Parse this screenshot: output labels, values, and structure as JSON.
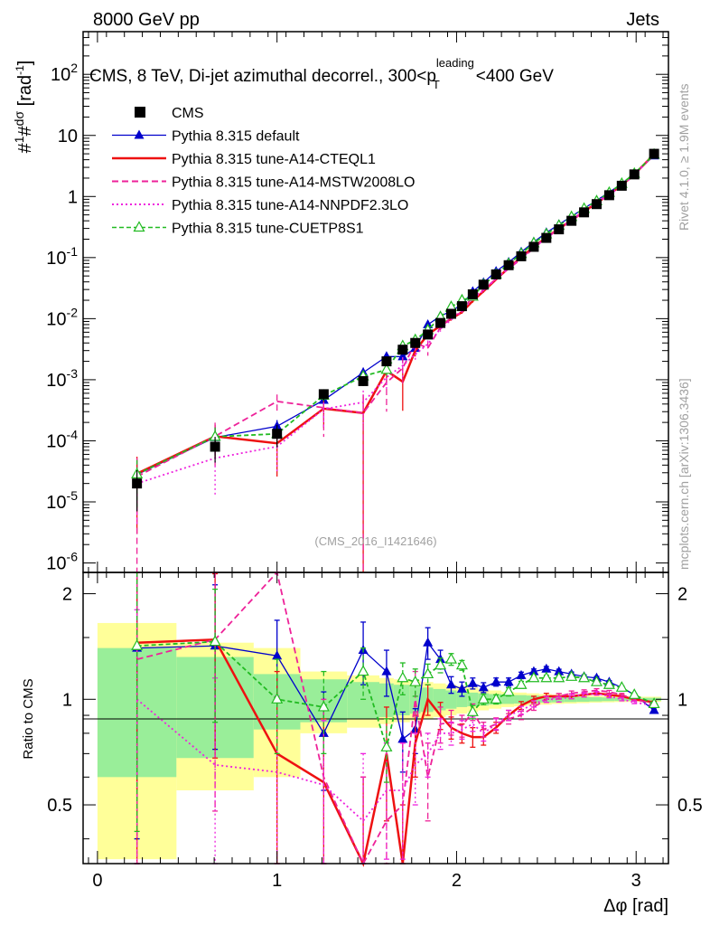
{
  "header": {
    "energy": "8000 GeV pp",
    "category": "Jets",
    "title_prefix": "CMS, 8 TeV, Di-jet azimuthal decorrel., 300<p",
    "title_sup": "leading",
    "title_sub": "T",
    "title_suffix": "<400 GeV",
    "side_rivet": "Rivet 4.1.0, ≥ 1.9M events",
    "side_mcplots": "mcplots.cern.ch [arXiv:1306.3436]",
    "analysis_id": "(CMS_2016_I1421646)"
  },
  "colors": {
    "cms": "#000000",
    "default": "#0000cc",
    "cteql1": "#ee1111",
    "mstw": "#ee2299",
    "nnpdf": "#ee22dd",
    "cuetp": "#22bb22",
    "band_yellow": "#ffff99",
    "band_green": "#99ee99"
  },
  "chart_data": {
    "type": "line",
    "title": "CMS, 8 TeV, Di-jet azimuthal decorrel., 300<pT leading<400 GeV",
    "xlabel": "Δφ [rad]",
    "ylabel": "#1/σ #dσ/dΔφ [rad^-1]",
    "ylabel_ratio": "Ratio to CMS",
    "xlim": [
      -0.08,
      3.18
    ],
    "ylim_main": [
      7e-07,
      500
    ],
    "ylim_ratio": [
      0.34,
      2.3
    ],
    "x_ticks": [
      "0",
      "1",
      "2",
      "3"
    ],
    "y_ticks_main": [
      "10^-6",
      "10^-5",
      "10^-4",
      "10^-3",
      "10^-2",
      "10^-1",
      "1",
      "10",
      "10^2"
    ],
    "y_ticks_ratio": [
      "0.5",
      "1",
      "2"
    ],
    "legend": [
      {
        "key": "cms",
        "label": "CMS"
      },
      {
        "key": "default",
        "label": "Pythia 8.315 default"
      },
      {
        "key": "cteql1",
        "label": "Pythia 8.315 tune-A14-CTEQL1"
      },
      {
        "key": "mstw",
        "label": "Pythia 8.315 tune-A14-MSTW2008LO"
      },
      {
        "key": "nnpdf",
        "label": "Pythia 8.315 tune-A14-NNPDF2.3LO"
      },
      {
        "key": "cuetp",
        "label": "Pythia 8.315 tune-CUETP8S1"
      }
    ],
    "x": [
      0.22,
      0.655,
      1.0,
      1.26,
      1.48,
      1.61,
      1.7,
      1.77,
      1.84,
      1.91,
      1.97,
      2.03,
      2.09,
      2.15,
      2.22,
      2.29,
      2.36,
      2.43,
      2.5,
      2.57,
      2.64,
      2.71,
      2.78,
      2.85,
      2.92,
      2.99,
      3.1
    ],
    "cms_values": [
      2e-05,
      8e-05,
      0.00013,
      0.00058,
      0.00095,
      0.002,
      0.0031,
      0.004,
      0.0055,
      0.0085,
      0.012,
      0.016,
      0.025,
      0.036,
      0.053,
      0.075,
      0.105,
      0.15,
      0.21,
      0.29,
      0.4,
      0.55,
      0.75,
      1.05,
      1.5,
      2.3,
      5.0
    ],
    "band_x_edges": [
      0.0,
      0.44,
      0.87,
      1.13,
      1.39,
      1.57,
      1.65,
      1.74,
      1.8,
      1.87,
      1.94,
      2.0,
      2.06,
      2.12,
      2.18,
      2.25,
      2.32,
      2.39,
      2.46,
      2.53,
      2.6,
      2.67,
      2.74,
      2.81,
      2.88,
      2.95,
      3.03,
      3.14
    ],
    "band_stat": [
      0.4,
      0.32,
      0.18,
      0.14,
      0.12,
      0.11,
      0.1,
      0.09,
      0.08,
      0.07,
      0.06,
      0.05,
      0.045,
      0.04,
      0.035,
      0.03,
      0.028,
      0.025,
      0.022,
      0.02,
      0.018,
      0.016,
      0.014,
      0.012,
      0.011,
      0.01,
      0.01
    ],
    "band_total": [
      0.65,
      0.45,
      0.4,
      0.2,
      0.17,
      0.15,
      0.14,
      0.13,
      0.12,
      0.11,
      0.1,
      0.09,
      0.08,
      0.07,
      0.06,
      0.05,
      0.045,
      0.04,
      0.035,
      0.03,
      0.028,
      0.025,
      0.022,
      0.02,
      0.018,
      0.017,
      0.017
    ],
    "series": [
      {
        "key": "default",
        "name": "Pythia 8.315 default",
        "marker": "triangle-filled",
        "dash": "",
        "ratio": [
          1.4,
          1.42,
          1.33,
          0.8,
          1.38,
          1.2,
          0.77,
          0.82,
          1.45,
          1.3,
          1.1,
          1.07,
          1.11,
          1.08,
          1.12,
          1.12,
          1.17,
          1.2,
          1.22,
          1.2,
          1.18,
          1.16,
          1.15,
          1.12,
          1.08,
          1.03,
          0.93
        ],
        "ratio_err": [
          1.0,
          0.7,
          0.35,
          0.25,
          0.28,
          0.18,
          0.15,
          0.12,
          0.15,
          0.08,
          0.06,
          0.05,
          0.04,
          0.035,
          0.03,
          0.03,
          0.025,
          0.02,
          0.02,
          0.018,
          0.016,
          0.014,
          0.012,
          0.01,
          0.01,
          0.008,
          0.008
        ]
      },
      {
        "key": "cteql1",
        "name": "Pythia 8.315 tune-A14-CTEQL1",
        "marker": "none",
        "dash": "",
        "ratio": [
          1.45,
          1.48,
          0.7,
          0.58,
          0.3,
          0.7,
          0.3,
          0.75,
          1.0,
          0.9,
          0.83,
          0.8,
          0.78,
          0.78,
          0.83,
          0.9,
          0.96,
          1.0,
          1.02,
          1.02,
          1.02,
          1.03,
          1.04,
          1.03,
          1.02,
          1.0,
          0.98
        ],
        "ratio_err": [
          1.3,
          0.8,
          0.5,
          0.3,
          0.3,
          0.25,
          0.2,
          0.15,
          0.1,
          0.08,
          0.06,
          0.05,
          0.05,
          0.04,
          0.03,
          0.03,
          0.025,
          0.02,
          0.02,
          0.018,
          0.016,
          0.014,
          0.012,
          0.01,
          0.01,
          0.008,
          0.008
        ]
      },
      {
        "key": "mstw",
        "name": "Pythia 8.315 tune-A14-MSTW2008LO",
        "marker": "none",
        "dash": "7,4",
        "ratio": [
          1.3,
          1.48,
          3.4,
          0.6,
          0.3,
          0.45,
          0.5,
          1.0,
          0.6,
          0.85,
          0.86,
          0.84,
          0.92,
          0.82,
          0.85,
          0.88,
          0.9,
          0.95,
          1.0,
          1.02,
          1.04,
          1.05,
          1.06,
          1.05,
          1.03,
          1.0,
          0.97
        ],
        "ratio_err": [
          1.3,
          1.0,
          1.0,
          0.4,
          0.3,
          0.3,
          0.25,
          0.2,
          0.15,
          0.1,
          0.07,
          0.06,
          0.05,
          0.04,
          0.035,
          0.03,
          0.025,
          0.02,
          0.02,
          0.018,
          0.016,
          0.014,
          0.012,
          0.01,
          0.01,
          0.008,
          0.008
        ]
      },
      {
        "key": "nnpdf",
        "name": "Pythia 8.315 tune-A14-NNPDF2.3LO",
        "marker": "none",
        "dash": "2,3",
        "ratio": [
          1.0,
          0.65,
          0.62,
          0.57,
          0.45,
          0.55,
          0.55,
          0.65,
          0.7,
          0.8,
          0.8,
          0.82,
          0.85,
          0.8,
          0.85,
          0.9,
          0.93,
          0.97,
          1.0,
          1.0,
          1.02,
          1.03,
          1.04,
          1.02,
          1.0,
          0.98,
          0.96
        ],
        "ratio_err": [
          0.8,
          0.5,
          0.4,
          0.3,
          0.25,
          0.2,
          0.2,
          0.15,
          0.1,
          0.08,
          0.06,
          0.05,
          0.04,
          0.04,
          0.03,
          0.03,
          0.025,
          0.02,
          0.02,
          0.018,
          0.016,
          0.014,
          0.012,
          0.01,
          0.01,
          0.008,
          0.008
        ]
      },
      {
        "key": "cuetp",
        "name": "Pythia 8.315 tune-CUETP8S1",
        "marker": "triangle-open",
        "dash": "5,3",
        "ratio": [
          1.42,
          1.46,
          1.0,
          0.95,
          1.2,
          0.73,
          1.15,
          1.12,
          1.18,
          1.25,
          1.3,
          1.25,
          0.92,
          1.0,
          1.0,
          1.05,
          1.1,
          1.15,
          1.15,
          1.15,
          1.16,
          1.15,
          1.12,
          1.1,
          1.08,
          1.03,
          0.97
        ],
        "ratio_err": [
          1.0,
          0.6,
          0.3,
          0.25,
          0.2,
          0.15,
          0.12,
          0.1,
          0.08,
          0.06,
          0.05,
          0.04,
          0.04,
          0.035,
          0.03,
          0.028,
          0.025,
          0.02,
          0.02,
          0.018,
          0.016,
          0.014,
          0.012,
          0.01,
          0.01,
          0.008,
          0.008
        ]
      }
    ]
  }
}
